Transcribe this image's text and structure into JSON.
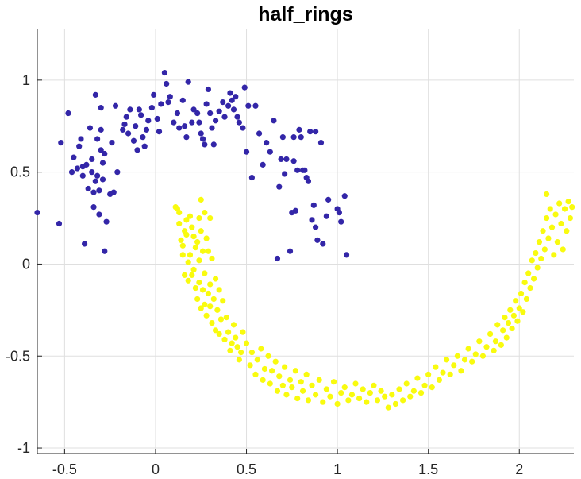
{
  "chart_data": {
    "type": "scatter",
    "title": "half_rings",
    "xlabel": "",
    "ylabel": "",
    "xlim": [
      -0.65,
      2.3
    ],
    "ylim": [
      -1.03,
      1.28
    ],
    "xticks": [
      -0.5,
      0,
      0.5,
      1,
      1.5,
      2
    ],
    "xtick_labels": [
      "-0.5",
      "0",
      "0.5",
      "1",
      "1.5",
      "2"
    ],
    "yticks": [
      -1,
      -0.5,
      0,
      0.5,
      1
    ],
    "ytick_labels": [
      "-1",
      "-0.5",
      "0",
      "0.5",
      "1"
    ],
    "grid": true,
    "series": [
      {
        "color": "#3326a8",
        "points": [
          [
            -0.65,
            0.28
          ],
          [
            -0.53,
            0.22
          ],
          [
            -0.52,
            0.66
          ],
          [
            -0.48,
            0.82
          ],
          [
            -0.46,
            0.5
          ],
          [
            -0.45,
            0.58
          ],
          [
            -0.43,
            0.52
          ],
          [
            -0.42,
            0.64
          ],
          [
            -0.41,
            0.68
          ],
          [
            -0.4,
            0.53
          ],
          [
            -0.4,
            0.48
          ],
          [
            -0.39,
            0.11
          ],
          [
            -0.38,
            0.54
          ],
          [
            -0.37,
            0.41
          ],
          [
            -0.36,
            0.74
          ],
          [
            -0.35,
            0.57
          ],
          [
            -0.35,
            0.5
          ],
          [
            -0.34,
            0.39
          ],
          [
            -0.34,
            0.31
          ],
          [
            -0.33,
            0.92
          ],
          [
            -0.33,
            0.45
          ],
          [
            -0.32,
            0.68
          ],
          [
            -0.32,
            0.48
          ],
          [
            -0.31,
            0.4
          ],
          [
            -0.31,
            0.27
          ],
          [
            -0.3,
            0.85
          ],
          [
            -0.3,
            0.73
          ],
          [
            -0.3,
            0.62
          ],
          [
            -0.29,
            0.55
          ],
          [
            -0.29,
            0.46
          ],
          [
            -0.28,
            0.6
          ],
          [
            -0.28,
            0.07
          ],
          [
            -0.27,
            0.23
          ],
          [
            -0.25,
            0.38
          ],
          [
            -0.24,
            0.66
          ],
          [
            -0.23,
            0.39
          ],
          [
            -0.22,
            0.86
          ],
          [
            -0.21,
            0.5
          ],
          [
            -0.18,
            0.73
          ],
          [
            -0.17,
            0.76
          ],
          [
            -0.16,
            0.8
          ],
          [
            -0.15,
            0.71
          ],
          [
            -0.14,
            0.84
          ],
          [
            -0.12,
            0.67
          ],
          [
            -0.11,
            0.75
          ],
          [
            -0.1,
            0.62
          ],
          [
            -0.09,
            0.84
          ],
          [
            -0.08,
            0.81
          ],
          [
            -0.07,
            0.69
          ],
          [
            -0.06,
            0.64
          ],
          [
            -0.05,
            0.73
          ],
          [
            -0.04,
            0.78
          ],
          [
            -0.02,
            0.85
          ],
          [
            -0.01,
            0.92
          ],
          [
            0.01,
            0.79
          ],
          [
            0.02,
            0.72
          ],
          [
            0.03,
            0.87
          ],
          [
            0.05,
            1.04
          ],
          [
            0.06,
            0.98
          ],
          [
            0.07,
            0.88
          ],
          [
            0.08,
            0.91
          ],
          [
            0.1,
            0.77
          ],
          [
            0.12,
            0.82
          ],
          [
            0.13,
            0.74
          ],
          [
            0.15,
            0.89
          ],
          [
            0.16,
            0.75
          ],
          [
            0.17,
            0.69
          ],
          [
            0.18,
            0.99
          ],
          [
            0.2,
            0.77
          ],
          [
            0.21,
            0.84
          ],
          [
            0.23,
            0.82
          ],
          [
            0.24,
            0.77
          ],
          [
            0.25,
            0.71
          ],
          [
            0.26,
            0.68
          ],
          [
            0.27,
            0.65
          ],
          [
            0.28,
            0.87
          ],
          [
            0.29,
            0.95
          ],
          [
            0.3,
            0.82
          ],
          [
            0.31,
            0.74
          ],
          [
            0.32,
            0.65
          ],
          [
            0.33,
            0.78
          ],
          [
            0.35,
            0.83
          ],
          [
            0.37,
            0.88
          ],
          [
            0.38,
            0.8
          ],
          [
            0.4,
            0.86
          ],
          [
            0.41,
            0.93
          ],
          [
            0.42,
            0.89
          ],
          [
            0.43,
            0.84
          ],
          [
            0.44,
            0.91
          ],
          [
            0.45,
            0.8
          ],
          [
            0.46,
            0.77
          ],
          [
            0.48,
            0.74
          ],
          [
            0.49,
            0.96
          ],
          [
            0.5,
            0.61
          ],
          [
            0.51,
            0.86
          ],
          [
            0.53,
            0.47
          ],
          [
            0.55,
            0.86
          ],
          [
            0.57,
            0.71
          ],
          [
            0.59,
            0.54
          ],
          [
            0.61,
            0.66
          ],
          [
            0.63,
            0.61
          ],
          [
            0.65,
            0.78
          ],
          [
            0.67,
            0.03
          ],
          [
            0.68,
            0.42
          ],
          [
            0.69,
            0.57
          ],
          [
            0.7,
            0.69
          ],
          [
            0.71,
            0.49
          ],
          [
            0.72,
            0.57
          ],
          [
            0.74,
            0.07
          ],
          [
            0.75,
            0.28
          ],
          [
            0.76,
            0.69
          ],
          [
            0.76,
            0.56
          ],
          [
            0.77,
            0.29
          ],
          [
            0.78,
            0.51
          ],
          [
            0.79,
            0.73
          ],
          [
            0.8,
            0.69
          ],
          [
            0.81,
            0.51
          ],
          [
            0.82,
            0.51
          ],
          [
            0.83,
            0.47
          ],
          [
            0.84,
            0.45
          ],
          [
            0.85,
            0.72
          ],
          [
            0.86,
            0.24
          ],
          [
            0.87,
            0.32
          ],
          [
            0.88,
            0.2
          ],
          [
            0.88,
            0.72
          ],
          [
            0.89,
            0.13
          ],
          [
            0.91,
            0.66
          ],
          [
            0.92,
            0.11
          ],
          [
            0.94,
            0.26
          ],
          [
            0.95,
            0.35
          ],
          [
            1.0,
            0.3
          ],
          [
            1.01,
            0.28
          ],
          [
            1.02,
            0.23
          ],
          [
            1.04,
            0.37
          ],
          [
            1.05,
            0.05
          ]
        ]
      },
      {
        "color": "#f9fb0e",
        "points": [
          [
            0.11,
            0.31
          ],
          [
            0.12,
            0.3
          ],
          [
            0.13,
            0.28
          ],
          [
            0.13,
            0.22
          ],
          [
            0.14,
            0.13
          ],
          [
            0.15,
            0.1
          ],
          [
            0.15,
            0.05
          ],
          [
            0.16,
            0.18
          ],
          [
            0.16,
            -0.06
          ],
          [
            0.17,
            0.24
          ],
          [
            0.17,
            0.16
          ],
          [
            0.18,
            0.01
          ],
          [
            0.18,
            -0.09
          ],
          [
            0.19,
            0.26
          ],
          [
            0.19,
            0.05
          ],
          [
            0.2,
            0.2
          ],
          [
            0.2,
            -0.06
          ],
          [
            0.21,
            0.15
          ],
          [
            0.21,
            -0.03
          ],
          [
            0.22,
            0.09
          ],
          [
            0.22,
            -0.13
          ],
          [
            0.23,
            0.12
          ],
          [
            0.23,
            -0.19
          ],
          [
            0.24,
            0.25
          ],
          [
            0.24,
            0.02
          ],
          [
            0.24,
            -0.1
          ],
          [
            0.25,
            0.35
          ],
          [
            0.25,
            0.18
          ],
          [
            0.25,
            -0.24
          ],
          [
            0.26,
            0.07
          ],
          [
            0.26,
            -0.14
          ],
          [
            0.27,
            0.28
          ],
          [
            0.27,
            -0.05
          ],
          [
            0.27,
            -0.22
          ],
          [
            0.28,
            0.14
          ],
          [
            0.28,
            -0.28
          ],
          [
            0.29,
            0.07
          ],
          [
            0.29,
            -0.16
          ],
          [
            0.3,
            0.25
          ],
          [
            0.3,
            -0.11
          ],
          [
            0.3,
            -0.23
          ],
          [
            0.31,
            0.03
          ],
          [
            0.31,
            -0.32
          ],
          [
            0.32,
            -0.19
          ],
          [
            0.33,
            -0.08
          ],
          [
            0.33,
            -0.36
          ],
          [
            0.34,
            -0.25
          ],
          [
            0.35,
            -0.14
          ],
          [
            0.35,
            -0.38
          ],
          [
            0.36,
            -0.3
          ],
          [
            0.37,
            -0.2
          ],
          [
            0.38,
            -0.41
          ],
          [
            0.39,
            -0.29
          ],
          [
            0.4,
            -0.37
          ],
          [
            0.41,
            -0.47
          ],
          [
            0.42,
            -0.43
          ],
          [
            0.43,
            -0.33
          ],
          [
            0.44,
            -0.4
          ],
          [
            0.45,
            -0.45
          ],
          [
            0.46,
            -0.52
          ],
          [
            0.47,
            -0.48
          ],
          [
            0.48,
            -0.37
          ],
          [
            0.5,
            -0.43
          ],
          [
            0.52,
            -0.55
          ],
          [
            0.53,
            -0.48
          ],
          [
            0.55,
            -0.6
          ],
          [
            0.56,
            -0.52
          ],
          [
            0.58,
            -0.46
          ],
          [
            0.59,
            -0.63
          ],
          [
            0.6,
            -0.57
          ],
          [
            0.62,
            -0.5
          ],
          [
            0.63,
            -0.65
          ],
          [
            0.64,
            -0.58
          ],
          [
            0.66,
            -0.53
          ],
          [
            0.67,
            -0.69
          ],
          [
            0.68,
            -0.61
          ],
          [
            0.7,
            -0.66
          ],
          [
            0.71,
            -0.56
          ],
          [
            0.72,
            -0.71
          ],
          [
            0.74,
            -0.63
          ],
          [
            0.75,
            -0.67
          ],
          [
            0.77,
            -0.58
          ],
          [
            0.78,
            -0.73
          ],
          [
            0.8,
            -0.64
          ],
          [
            0.81,
            -0.69
          ],
          [
            0.83,
            -0.6
          ],
          [
            0.84,
            -0.74
          ],
          [
            0.86,
            -0.66
          ],
          [
            0.88,
            -0.71
          ],
          [
            0.9,
            -0.63
          ],
          [
            0.92,
            -0.75
          ],
          [
            0.94,
            -0.68
          ],
          [
            0.96,
            -0.72
          ],
          [
            0.98,
            -0.64
          ],
          [
            1.0,
            -0.76
          ],
          [
            1.02,
            -0.7
          ],
          [
            1.04,
            -0.67
          ],
          [
            1.06,
            -0.74
          ],
          [
            1.08,
            -0.71
          ],
          [
            1.1,
            -0.65
          ],
          [
            1.12,
            -0.73
          ],
          [
            1.14,
            -0.68
          ],
          [
            1.16,
            -0.75
          ],
          [
            1.18,
            -0.7
          ],
          [
            1.2,
            -0.66
          ],
          [
            1.22,
            -0.74
          ],
          [
            1.24,
            -0.69
          ],
          [
            1.26,
            -0.72
          ],
          [
            1.28,
            -0.78
          ],
          [
            1.3,
            -0.71
          ],
          [
            1.32,
            -0.76
          ],
          [
            1.34,
            -0.68
          ],
          [
            1.36,
            -0.74
          ],
          [
            1.38,
            -0.65
          ],
          [
            1.4,
            -0.72
          ],
          [
            1.42,
            -0.69
          ],
          [
            1.44,
            -0.62
          ],
          [
            1.46,
            -0.7
          ],
          [
            1.48,
            -0.66
          ],
          [
            1.5,
            -0.6
          ],
          [
            1.52,
            -0.67
          ],
          [
            1.54,
            -0.56
          ],
          [
            1.56,
            -0.63
          ],
          [
            1.58,
            -0.59
          ],
          [
            1.6,
            -0.52
          ],
          [
            1.62,
            -0.6
          ],
          [
            1.64,
            -0.55
          ],
          [
            1.66,
            -0.5
          ],
          [
            1.68,
            -0.58
          ],
          [
            1.7,
            -0.52
          ],
          [
            1.72,
            -0.46
          ],
          [
            1.74,
            -0.53
          ],
          [
            1.76,
            -0.49
          ],
          [
            1.78,
            -0.42
          ],
          [
            1.8,
            -0.5
          ],
          [
            1.82,
            -0.45
          ],
          [
            1.84,
            -0.38
          ],
          [
            1.86,
            -0.47
          ],
          [
            1.87,
            -0.42
          ],
          [
            1.88,
            -0.33
          ],
          [
            1.9,
            -0.44
          ],
          [
            1.91,
            -0.36
          ],
          [
            1.92,
            -0.29
          ],
          [
            1.93,
            -0.4
          ],
          [
            1.94,
            -0.32
          ],
          [
            1.95,
            -0.25
          ],
          [
            1.96,
            -0.35
          ],
          [
            1.97,
            -0.28
          ],
          [
            1.98,
            -0.2
          ],
          [
            1.99,
            -0.31
          ],
          [
            2.0,
            -0.24
          ],
          [
            2.01,
            -0.16
          ],
          [
            2.02,
            -0.26
          ],
          [
            2.03,
            -0.1
          ],
          [
            2.04,
            -0.19
          ],
          [
            2.05,
            -0.05
          ],
          [
            2.06,
            -0.13
          ],
          [
            2.07,
            0.02
          ],
          [
            2.08,
            -0.08
          ],
          [
            2.09,
            0.06
          ],
          [
            2.1,
            -0.02
          ],
          [
            2.11,
            0.12
          ],
          [
            2.12,
            0.03
          ],
          [
            2.13,
            0.18
          ],
          [
            2.14,
            0.08
          ],
          [
            2.15,
            0.25
          ],
          [
            2.15,
            0.38
          ],
          [
            2.16,
            0.14
          ],
          [
            2.17,
            0.3
          ],
          [
            2.18,
            0.2
          ],
          [
            2.19,
            0.05
          ],
          [
            2.2,
            0.27
          ],
          [
            2.21,
            0.12
          ],
          [
            2.22,
            0.33
          ],
          [
            2.23,
            0.22
          ],
          [
            2.24,
            0.08
          ],
          [
            2.25,
            0.3
          ],
          [
            2.26,
            0.18
          ],
          [
            2.27,
            0.34
          ],
          [
            2.28,
            0.25
          ],
          [
            2.29,
            0.31
          ]
        ]
      }
    ]
  }
}
